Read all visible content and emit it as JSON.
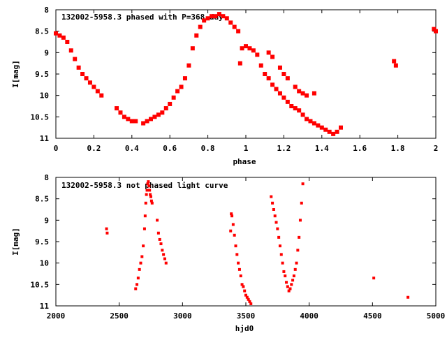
{
  "chart_data": [
    {
      "type": "scatter",
      "title": "132002-5958.3 phased with P=368 day",
      "xlabel": "phase",
      "ylabel": "I[mag]",
      "xlim": [
        0,
        2
      ],
      "ylim": [
        11,
        8
      ],
      "inverted_y": true,
      "x_ticks": [
        "0",
        "0.2",
        "0.4",
        "0.6",
        "0.8",
        "1",
        "1.2",
        "1.4",
        "1.6",
        "1.8",
        "2"
      ],
      "y_ticks": [
        "8",
        "8.5",
        "9",
        "9.5",
        "10",
        "10.5",
        "11"
      ],
      "marker_color": "#ff0000",
      "grid": false,
      "series": [
        {
          "x": [
            0.0,
            0.02,
            0.04,
            0.06,
            0.08,
            0.1,
            0.12,
            0.14,
            0.16,
            0.18,
            0.2,
            0.22,
            0.24,
            0.32,
            0.34,
            0.36,
            0.38,
            0.4,
            0.42,
            0.46,
            0.48,
            0.5,
            0.52,
            0.54,
            0.56,
            0.58,
            0.6,
            0.62,
            0.64,
            0.66,
            0.68,
            0.7,
            0.72,
            0.74,
            0.76,
            0.78,
            0.8,
            0.82,
            0.84,
            0.86,
            0.88,
            0.9,
            0.92,
            0.94,
            0.96,
            0.97,
            0.98,
            1.0,
            1.02,
            1.04,
            1.06,
            1.08,
            1.1,
            1.12,
            1.14,
            1.16,
            1.18,
            1.2,
            1.22,
            1.24,
            1.26,
            1.28,
            1.3,
            1.32,
            1.34,
            1.36,
            1.38,
            1.4,
            1.42,
            1.44,
            1.46,
            1.48,
            1.5,
            1.12,
            1.14,
            1.18,
            1.2,
            1.22,
            1.26,
            1.28,
            1.3,
            1.32,
            1.36,
            1.79,
            1.78,
            1.99,
            2.0
          ],
          "y": [
            8.55,
            8.6,
            8.65,
            8.75,
            8.95,
            9.15,
            9.35,
            9.5,
            9.6,
            9.7,
            9.8,
            9.9,
            10.0,
            10.3,
            10.4,
            10.5,
            10.55,
            10.6,
            10.6,
            10.65,
            10.6,
            10.55,
            10.5,
            10.45,
            10.4,
            10.3,
            10.2,
            10.05,
            9.9,
            9.8,
            9.6,
            9.3,
            8.9,
            8.6,
            8.4,
            8.25,
            8.2,
            8.15,
            8.15,
            8.1,
            8.15,
            8.2,
            8.3,
            8.4,
            8.5,
            9.25,
            8.9,
            8.85,
            8.9,
            8.95,
            9.05,
            9.3,
            9.5,
            9.6,
            9.75,
            9.85,
            9.95,
            10.05,
            10.15,
            10.25,
            10.3,
            10.35,
            10.45,
            10.55,
            10.6,
            10.65,
            10.7,
            10.75,
            10.8,
            10.85,
            10.9,
            10.85,
            10.75,
            9.0,
            9.1,
            9.35,
            9.5,
            9.6,
            9.8,
            9.9,
            9.95,
            10.0,
            9.95,
            9.3,
            9.2,
            8.45,
            8.5
          ]
        }
      ]
    },
    {
      "type": "scatter",
      "title": "132002-5958.3 not phased light curve",
      "xlabel": "hjd0",
      "ylabel": "I[mag]",
      "xlim": [
        2000,
        5000
      ],
      "ylim": [
        11,
        8
      ],
      "inverted_y": true,
      "x_ticks": [
        "2000",
        "2500",
        "3000",
        "3500",
        "4000",
        "4500",
        "5000"
      ],
      "y_ticks": [
        "8",
        "8.5",
        "9",
        "9.5",
        "10",
        "10.5",
        "11"
      ],
      "marker_color": "#ff0000",
      "grid": false,
      "series": [
        {
          "x": [
            2400,
            2405,
            2630,
            2640,
            2650,
            2660,
            2670,
            2680,
            2690,
            2700,
            2705,
            2710,
            2715,
            2720,
            2725,
            2730,
            2735,
            2740,
            2745,
            2750,
            2755,
            2760,
            2800,
            2810,
            2820,
            2830,
            2840,
            2850,
            2860,
            2870,
            3380,
            3385,
            3390,
            3400,
            3410,
            3420,
            3430,
            3440,
            3450,
            3460,
            3470,
            3480,
            3490,
            3500,
            3510,
            3520,
            3530,
            3540,
            3700,
            3710,
            3720,
            3730,
            3740,
            3750,
            3760,
            3770,
            3780,
            3790,
            3800,
            3810,
            3820,
            3830,
            3840,
            3850,
            3860,
            3870,
            3880,
            3890,
            3900,
            3910,
            3920,
            3930,
            3940,
            3950,
            4510,
            4780
          ],
          "y": [
            9.2,
            9.3,
            10.6,
            10.5,
            10.35,
            10.15,
            10.0,
            9.85,
            9.6,
            9.2,
            8.9,
            8.6,
            8.4,
            8.3,
            8.15,
            8.1,
            8.2,
            8.3,
            8.4,
            8.45,
            8.55,
            8.6,
            9.0,
            9.3,
            9.45,
            9.55,
            9.7,
            9.8,
            9.9,
            10.0,
            9.25,
            8.85,
            8.9,
            9.1,
            9.35,
            9.6,
            9.8,
            10.0,
            10.15,
            10.3,
            10.5,
            10.55,
            10.65,
            10.75,
            10.8,
            10.85,
            10.9,
            10.95,
            8.45,
            8.6,
            8.75,
            8.9,
            9.05,
            9.2,
            9.4,
            9.6,
            9.8,
            10.0,
            10.2,
            10.3,
            10.45,
            10.55,
            10.65,
            10.6,
            10.5,
            10.4,
            10.3,
            10.15,
            10.0,
            9.7,
            9.4,
            9.0,
            8.6,
            8.15,
            10.35,
            10.8
          ]
        }
      ]
    }
  ]
}
